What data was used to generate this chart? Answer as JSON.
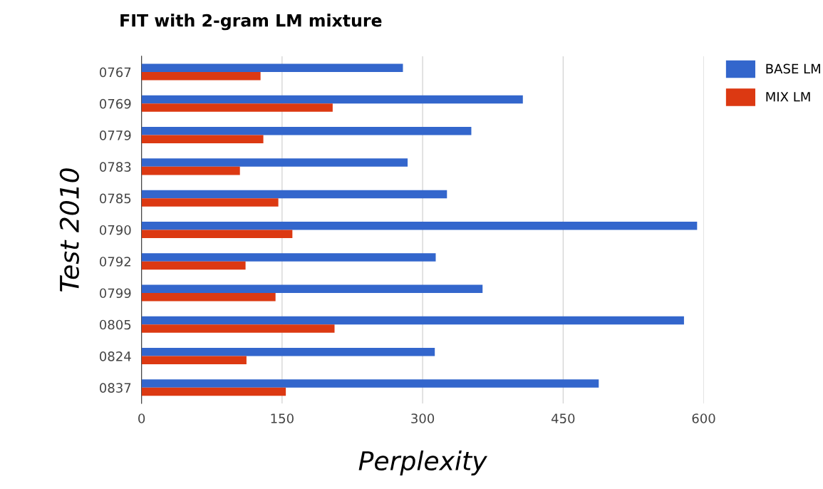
{
  "chart_data": {
    "type": "bar",
    "orientation": "horizontal",
    "title": "FIT with 2-gram LM mixture",
    "xlabel": "Perplexity",
    "ylabel": "Test 2010",
    "categories": [
      "0767",
      "0769",
      "0779",
      "0783",
      "0785",
      "0790",
      "0792",
      "0799",
      "0805",
      "0824",
      "0837"
    ],
    "series": [
      {
        "name": "BASE LM",
        "color": "#3366cc",
        "values": [
          279,
          407,
          352,
          284,
          326,
          593,
          314,
          364,
          579,
          313,
          488
        ]
      },
      {
        "name": "MIX LM",
        "color": "#dc3912",
        "values": [
          127,
          204,
          130,
          105,
          146,
          161,
          111,
          143,
          206,
          112,
          154
        ]
      }
    ],
    "xlim": [
      0,
      600
    ],
    "xticks": [
      0,
      150,
      300,
      450,
      600
    ],
    "grid": "x",
    "legend": "top right"
  }
}
